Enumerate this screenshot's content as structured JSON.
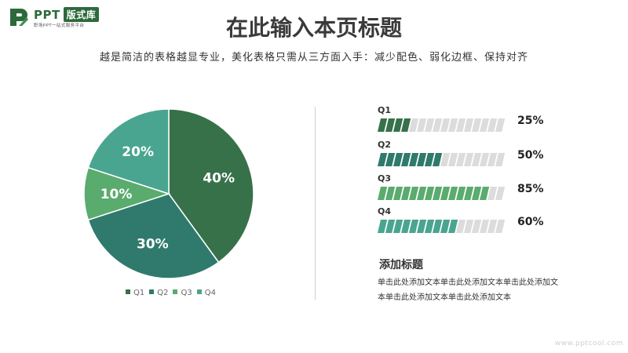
{
  "logo": {
    "name": "PPT",
    "badge": "版式库",
    "tagline": "职场PPT一站式服务平台"
  },
  "title": "在此输入本页标题",
  "subtitle": "越是简洁的表格越显专业，美化表格只需从三方面入手：减少配色、弱化边框、保持对齐",
  "chart_data": [
    {
      "type": "pie",
      "categories": [
        "Q1",
        "Q2",
        "Q3",
        "Q4"
      ],
      "values": [
        40,
        30,
        10,
        20
      ],
      "labels": [
        "40%",
        "30%",
        "10%",
        "20%"
      ],
      "colors": [
        "#37714a",
        "#2f7a6c",
        "#5aab6e",
        "#49a590"
      ],
      "legend": "bottom"
    },
    {
      "type": "bar",
      "categories": [
        "Q1",
        "Q2",
        "Q3",
        "Q4"
      ],
      "values": [
        25,
        50,
        85,
        60
      ],
      "labels": [
        "25%",
        "50%",
        "85%",
        "60%"
      ],
      "colors": [
        "#37714a",
        "#2f7a6c",
        "#5aab6e",
        "#49a590"
      ],
      "xlim": [
        0,
        100
      ]
    }
  ],
  "side_note": {
    "title": "添加标题",
    "lines": [
      "单击此处添加文本单击此处添加文本单击此处添加文",
      "本单击此处添加文本单击此处添加文本"
    ]
  },
  "watermark": "www.pptcool.com"
}
